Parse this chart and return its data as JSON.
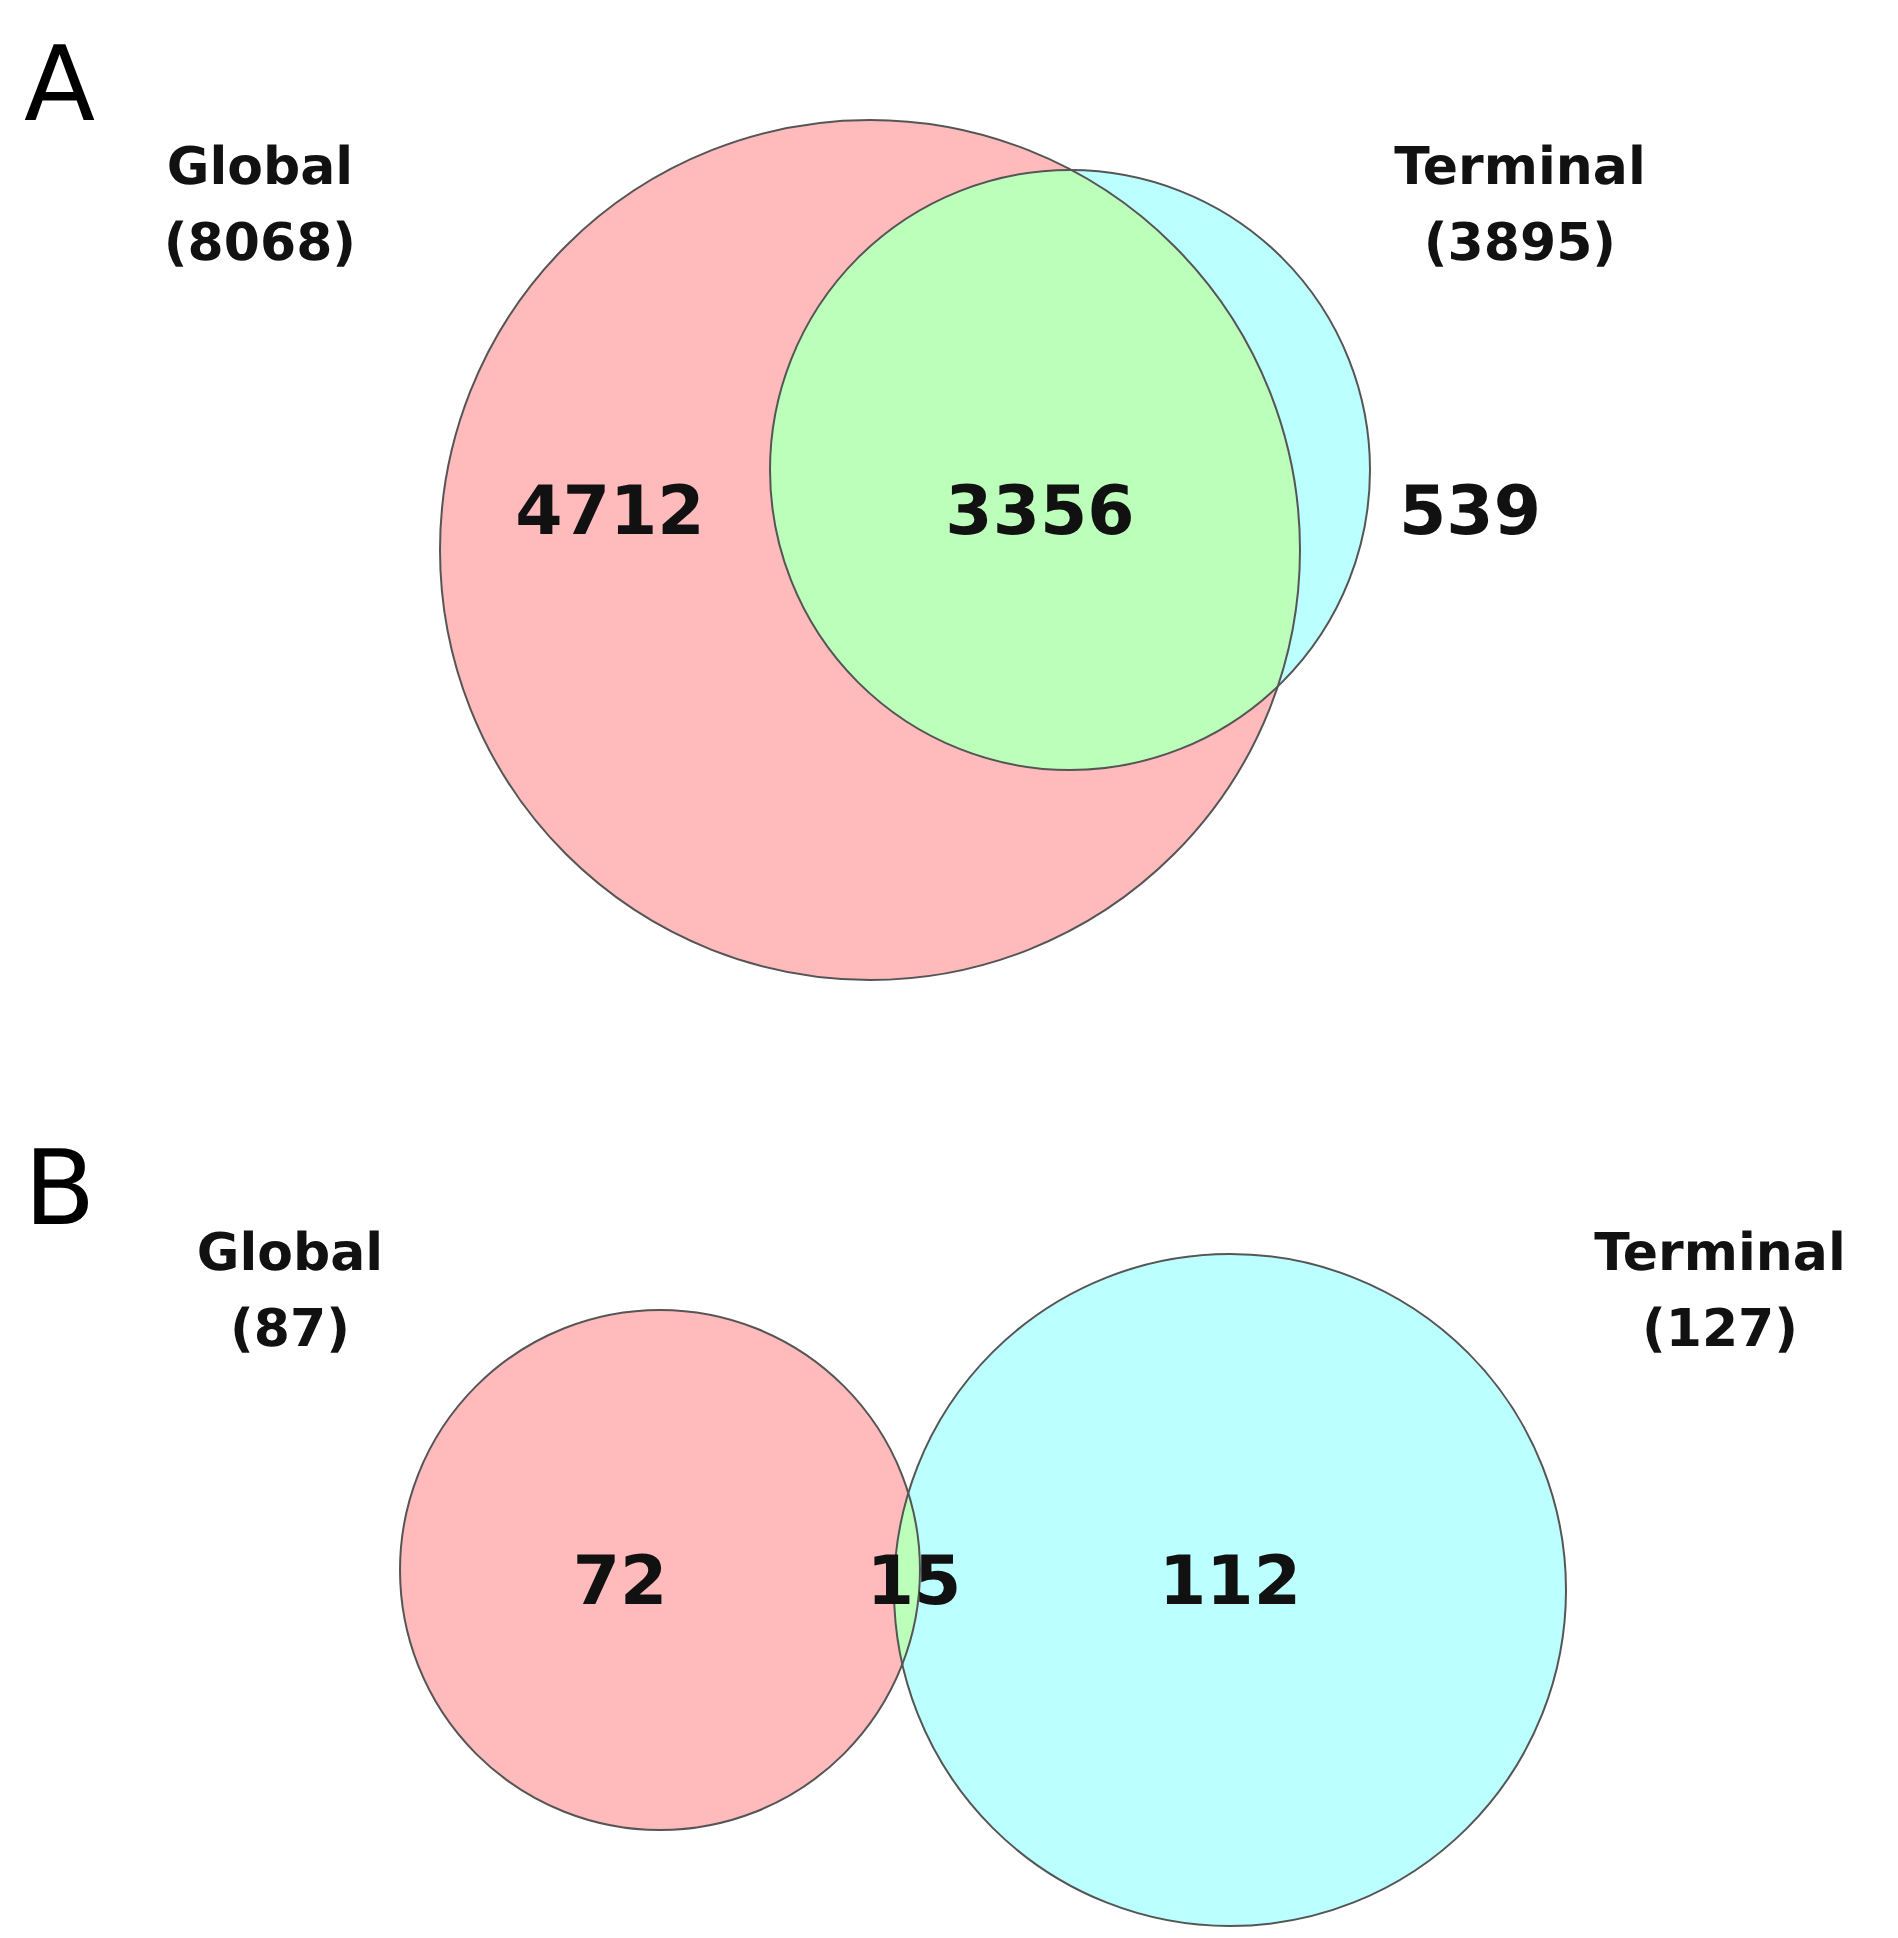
{
  "chart_data": [
    {
      "type": "other",
      "title": "A",
      "categories": [
        null,
        null,
        null
      ],
      "values": [
        4712,
        3356,
        539
      ],
      "data_labels": true,
      "colors": [
        "#ffbbbb",
        "#bbffbb",
        "#bbffff"
      ],
      "annotations": [
        "Global\n(8068)",
        "Terminal\n(3895)"
      ]
    },
    {
      "type": "other",
      "title": "B",
      "categories": [
        null,
        null,
        null
      ],
      "values": [
        72,
        15,
        112
      ],
      "data_labels": true,
      "colors": [
        "#ffbbbb",
        "#bbffbb",
        "#bbffff"
      ],
      "annotations": [
        "Global\n(87)",
        "Terminal\n(127)"
      ]
    }
  ]
}
